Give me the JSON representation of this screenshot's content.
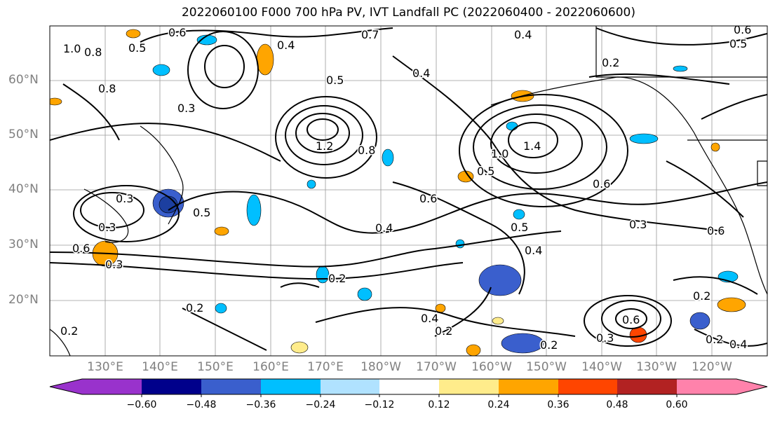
{
  "title": "2022060100 F000 700 hPa PV, IVT Landfall PC (2022060400 - 2022060600)",
  "latitude_labels": [
    "60°N",
    "50°N",
    "40°N",
    "30°N",
    "20°N"
  ],
  "longitude_labels": [
    "130°E",
    "140°E",
    "150°E",
    "160°E",
    "170°E",
    "180°W",
    "170°W",
    "160°W",
    "150°W",
    "140°W",
    "130°W",
    "120°W"
  ],
  "colorbar": {
    "ticks": [
      "−0.60",
      "−0.48",
      "−0.36",
      "−0.24",
      "−0.12",
      "0.12",
      "0.24",
      "0.36",
      "0.48",
      "0.60"
    ],
    "colors": [
      "#9932cc",
      "#00008b",
      "#3a5fcd",
      "#00bfff",
      "#b0e2ff",
      "#ffffff",
      "#ffec8b",
      "#ffa500",
      "#ff4500",
      "#b22222",
      "#ff82ab"
    ]
  },
  "contour_labels": [
    {
      "text": "1.0"
    },
    {
      "text": "0.8"
    },
    {
      "text": "0.5"
    },
    {
      "text": "0.6"
    },
    {
      "text": "0.4"
    },
    {
      "text": "0.7"
    },
    {
      "text": "0.4"
    },
    {
      "text": "0.6"
    },
    {
      "text": "0.5"
    },
    {
      "text": "0.8"
    },
    {
      "text": "0.3"
    },
    {
      "text": "0.5"
    },
    {
      "text": "0.4"
    },
    {
      "text": "1.2"
    },
    {
      "text": "0.8"
    },
    {
      "text": "1.4"
    },
    {
      "text": "1.0"
    },
    {
      "text": "0.5"
    },
    {
      "text": "0.6"
    },
    {
      "text": "0.6"
    },
    {
      "text": "0.3"
    },
    {
      "text": "0.5"
    },
    {
      "text": "0.3"
    },
    {
      "text": "0.6"
    },
    {
      "text": "0.3"
    },
    {
      "text": "0.4"
    },
    {
      "text": "0.4"
    },
    {
      "text": "0.6"
    },
    {
      "text": "0.2"
    },
    {
      "text": "0.3"
    },
    {
      "text": "0.2"
    },
    {
      "text": "0.2"
    },
    {
      "text": "0.4"
    },
    {
      "text": "0.2"
    },
    {
      "text": "0.3"
    },
    {
      "text": "0.2"
    },
    {
      "text": "0.2"
    },
    {
      "text": "0.2"
    },
    {
      "text": "0.4"
    },
    {
      "text": "0.6"
    },
    {
      "text": "0.2"
    },
    {
      "text": "0.5"
    }
  ]
}
